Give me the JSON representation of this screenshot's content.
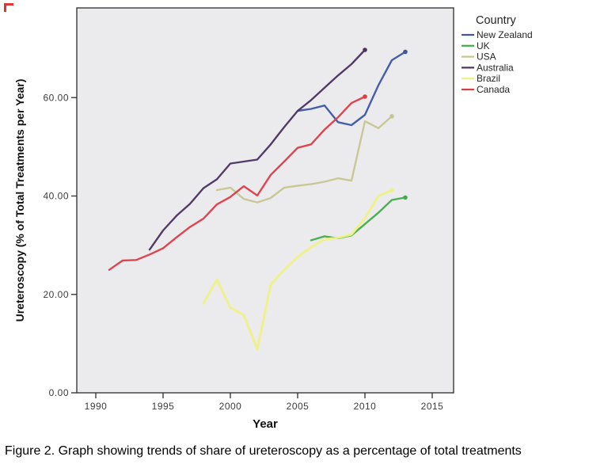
{
  "figure": {
    "caption": "Figure 2. Graph showing trends of share of ureteroscopy as a percentage of total treatments"
  },
  "chart_data": {
    "type": "line",
    "title": "",
    "xlabel": "Year",
    "ylabel": "Ureteroscopy (% of Total Treatments per Year)",
    "xlim": [
      1988.6,
      2016.6
    ],
    "ylim": [
      0,
      78
    ],
    "grid": false,
    "plot_background": "#ebebee",
    "x_ticks": [
      "1990",
      "1995",
      "2000",
      "2005",
      "2010",
      "2015"
    ],
    "x_tick_years": [
      1990,
      1995,
      2000,
      2005,
      2010,
      2015
    ],
    "y_ticks": [
      "0.00",
      "20.00",
      "40.00",
      "60.00"
    ],
    "y_tick_values": [
      0,
      20,
      40,
      60
    ],
    "legend_title": "Country",
    "legend_position": "outside-top-right",
    "series": [
      {
        "name": "New Zealand",
        "color": "#3c55a5",
        "width": 2.4,
        "points": [
          [
            2005,
            57.3
          ],
          [
            2006,
            57.7
          ],
          [
            2007,
            58.4
          ],
          [
            2008,
            55.0
          ],
          [
            2009,
            54.4
          ],
          [
            2010,
            56.5
          ],
          [
            2011,
            62.5
          ],
          [
            2012,
            67.6
          ],
          [
            2013,
            69.3
          ]
        ]
      },
      {
        "name": "UK",
        "color": "#3fae49",
        "width": 2.4,
        "points": [
          [
            2006,
            31.0
          ],
          [
            2007,
            31.8
          ],
          [
            2008,
            31.4
          ],
          [
            2009,
            32.0
          ],
          [
            2010,
            34.3
          ],
          [
            2011,
            36.6
          ],
          [
            2012,
            39.2
          ],
          [
            2013,
            39.7
          ]
        ]
      },
      {
        "name": "USA",
        "color": "#c6c690",
        "width": 2.4,
        "points": [
          [
            1999,
            41.2
          ],
          [
            2000,
            41.7
          ],
          [
            2001,
            39.4
          ],
          [
            2002,
            38.7
          ],
          [
            2003,
            39.6
          ],
          [
            2004,
            41.7
          ],
          [
            2005,
            42.1
          ],
          [
            2006,
            42.4
          ],
          [
            2007,
            42.9
          ],
          [
            2008,
            43.6
          ],
          [
            2009,
            43.1
          ],
          [
            2010,
            55.2
          ],
          [
            2011,
            53.8
          ],
          [
            2012,
            56.2
          ]
        ]
      },
      {
        "name": "Australia",
        "color": "#4b3260",
        "width": 2.4,
        "points": [
          [
            1994,
            29.1
          ],
          [
            1995,
            33.0
          ],
          [
            1996,
            36.0
          ],
          [
            1997,
            38.4
          ],
          [
            1998,
            41.6
          ],
          [
            1999,
            43.4
          ],
          [
            2000,
            46.6
          ],
          [
            2001,
            47.0
          ],
          [
            2002,
            47.4
          ],
          [
            2003,
            50.5
          ],
          [
            2004,
            54.0
          ],
          [
            2005,
            57.3
          ],
          [
            2006,
            59.5
          ],
          [
            2007,
            62.0
          ],
          [
            2008,
            64.5
          ],
          [
            2009,
            66.8
          ],
          [
            2010,
            69.7
          ]
        ]
      },
      {
        "name": "Brazil",
        "color": "#eef186",
        "width": 3,
        "points": [
          [
            1998,
            18.2
          ],
          [
            1999,
            23.0
          ],
          [
            2000,
            17.3
          ],
          [
            2001,
            15.8
          ],
          [
            2002,
            8.8
          ],
          [
            2003,
            22.0
          ],
          [
            2004,
            25.0
          ],
          [
            2005,
            27.6
          ],
          [
            2006,
            29.6
          ],
          [
            2007,
            31.2
          ],
          [
            2008,
            31.5
          ],
          [
            2009,
            32.2
          ],
          [
            2010,
            35.5
          ],
          [
            2011,
            40.0
          ],
          [
            2012,
            41.2
          ]
        ]
      },
      {
        "name": "Canada",
        "color": "#dd3c45",
        "width": 2.4,
        "points": [
          [
            1991,
            25.0
          ],
          [
            1992,
            26.9
          ],
          [
            1993,
            27.0
          ],
          [
            1994,
            28.1
          ],
          [
            1995,
            29.4
          ],
          [
            1996,
            31.6
          ],
          [
            1997,
            33.7
          ],
          [
            1998,
            35.4
          ],
          [
            1999,
            38.3
          ],
          [
            2000,
            39.8
          ],
          [
            2001,
            42.0
          ],
          [
            2002,
            40.1
          ],
          [
            2003,
            44.3
          ],
          [
            2004,
            47.0
          ],
          [
            2005,
            49.8
          ],
          [
            2006,
            50.5
          ],
          [
            2007,
            53.5
          ],
          [
            2008,
            56.0
          ],
          [
            2009,
            58.9
          ],
          [
            2010,
            60.2
          ]
        ]
      }
    ]
  }
}
